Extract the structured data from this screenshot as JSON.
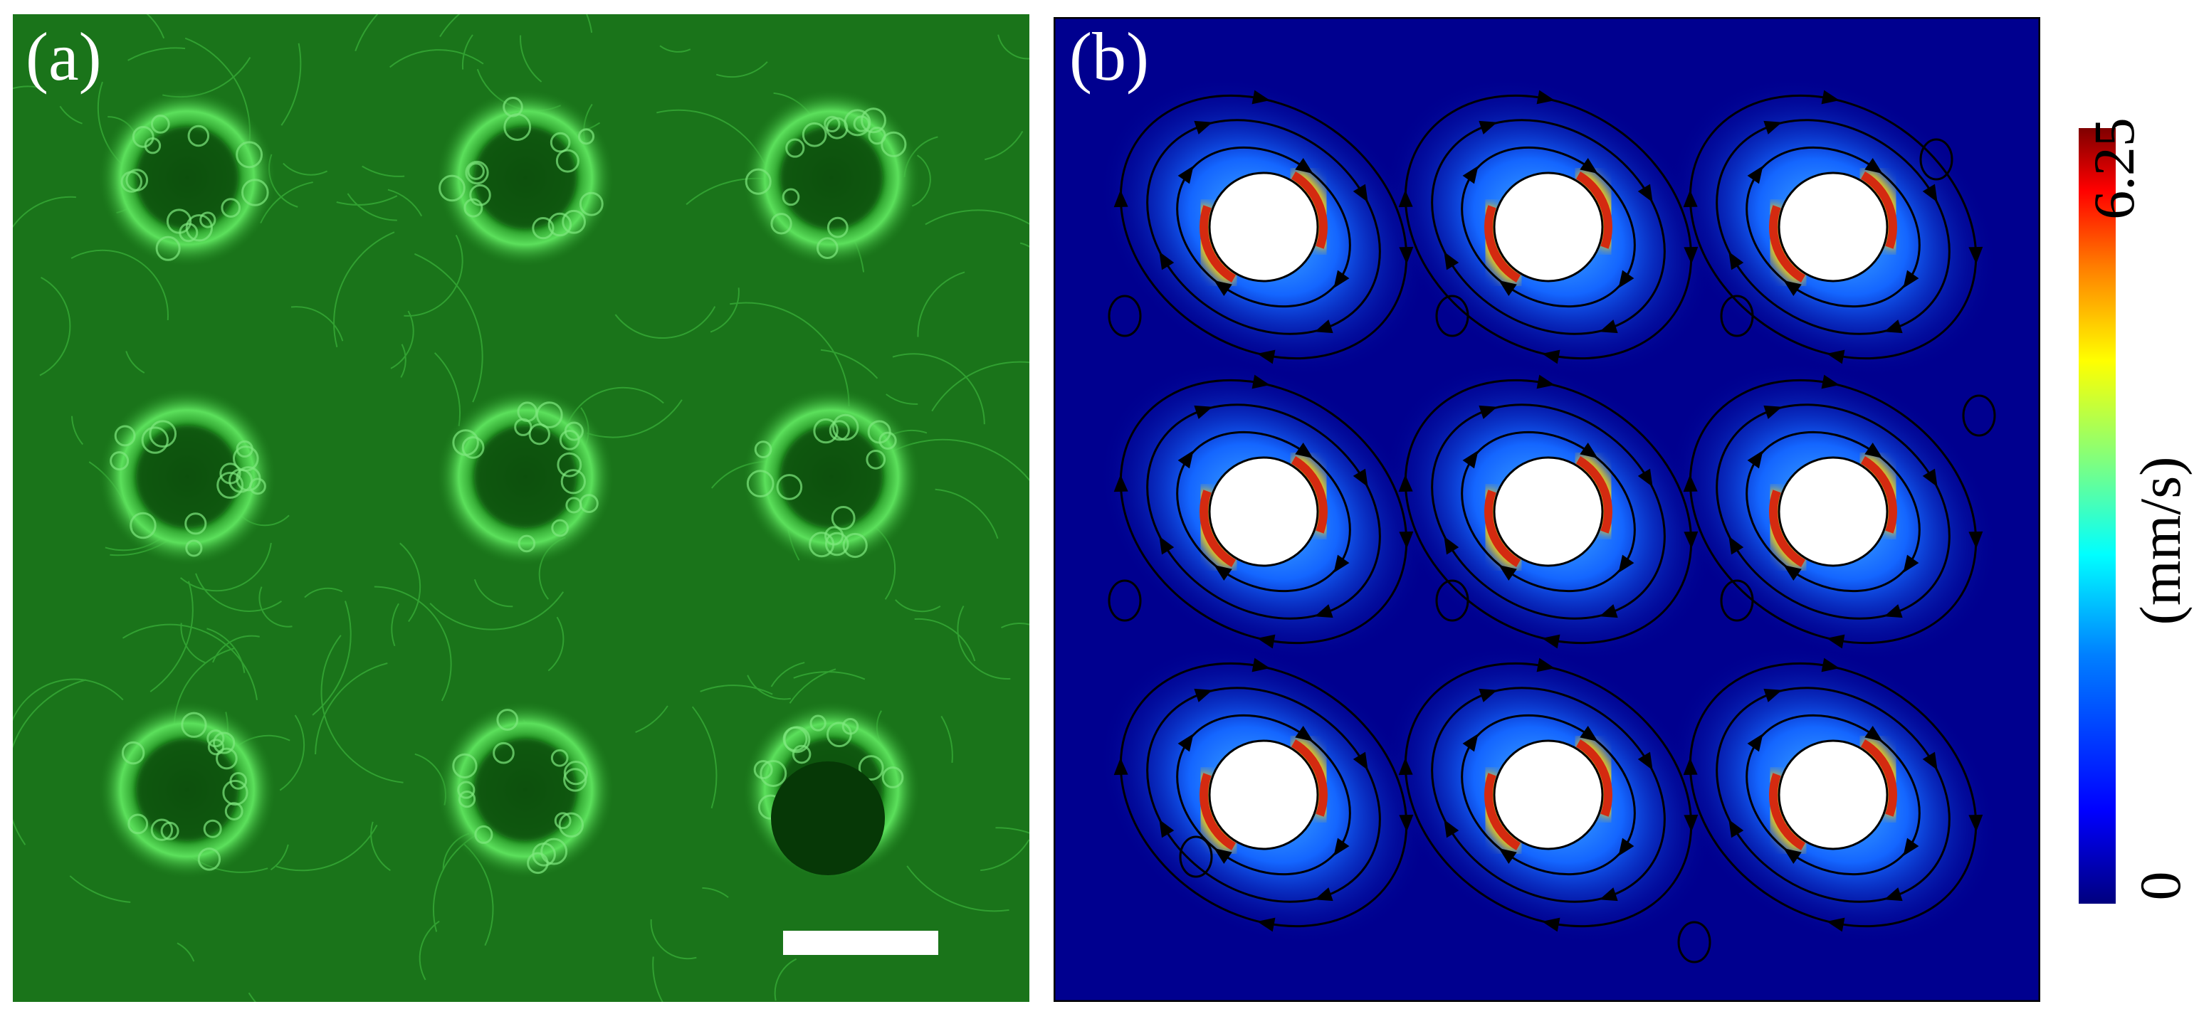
{
  "panels": [
    {
      "label": "(a)",
      "description_kind": "fluorescence microscopy image of swirling bacterial flow around 3x3 pillar array",
      "colors": {
        "background": "#1a7a1a",
        "streak": "#4fd84f",
        "hole": "#0a4a0a"
      },
      "icon": "scale-bar"
    },
    {
      "label": "(b)",
      "colors": {
        "field_low": "#00008f",
        "field_mid": "#1a6fff",
        "field_high": "#d42a10",
        "pillar": "#ffffff",
        "streamline": "#000000"
      }
    }
  ],
  "colorbar": {
    "max_label": "6.25",
    "min_label": "0",
    "unit_label": "(mm/s)",
    "range": [
      0,
      6.25
    ],
    "colormap": "jet"
  },
  "chart_data": {
    "type": "heatmap",
    "title": "",
    "grid": "3x3 pillar array",
    "rows": 3,
    "cols": 3,
    "value_range": [
      0,
      6.25
    ],
    "unit": "mm/s",
    "rotation": "alternating vortex per pillar, high speed at pillar edges"
  }
}
